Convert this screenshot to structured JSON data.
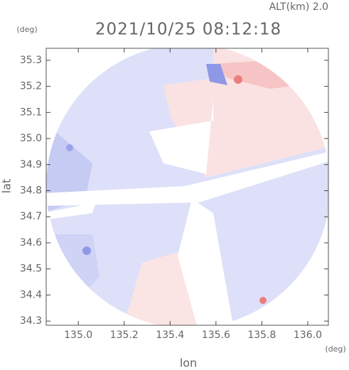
{
  "chart_data": {
    "type": "map",
    "title": "ALT(km) 2.0",
    "subtitle": "2021/10/25 08:12:18",
    "x_label": "lon",
    "y_label": "lat",
    "x_unit": "(deg)",
    "y_unit": "(deg)",
    "xlim": [
      134.86,
      136.09
    ],
    "ylim": [
      34.284,
      35.346
    ],
    "xticks": [
      {
        "value": 135,
        "label": "135.0"
      },
      135.2,
      135.4,
      135.6,
      135.8,
      {
        "value": 136,
        "label": "136.0"
      }
    ],
    "yticks": [
      34.3,
      34.4,
      34.5,
      34.6,
      34.7,
      34.8,
      34.9,
      {
        "value": 35,
        "label": "35.0"
      },
      35.1,
      35.2,
      35.3
    ]
  }
}
